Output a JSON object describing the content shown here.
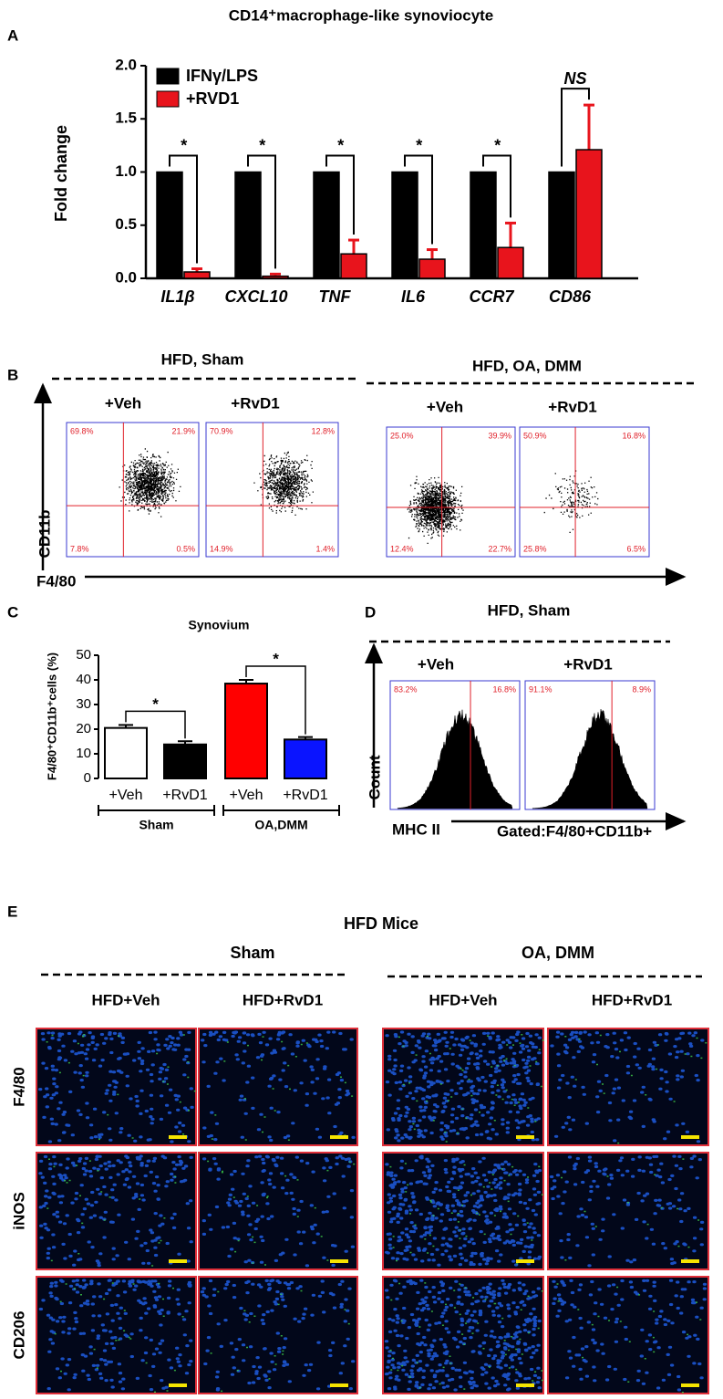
{
  "title": "CD14⁺macrophage-like synoviocyte",
  "panel_labels": [
    "A",
    "B",
    "C",
    "D",
    "E"
  ],
  "chart_data": [
    {
      "type": "bar",
      "ylabel": "Fold change",
      "categories": [
        "IL1β",
        "CXCL10",
        "TNF",
        "IL6",
        "CCR7",
        "CD86"
      ],
      "series": [
        {
          "name": "IFNγ/LPS",
          "color": "#000000",
          "values": [
            1,
            1,
            1,
            1,
            1,
            1
          ]
        },
        {
          "name": "+RVD1",
          "color": "#e8141c",
          "values": [
            0.06,
            0.02,
            0.23,
            0.18,
            0.29,
            1.21
          ],
          "errors": [
            0.03,
            0.02,
            0.13,
            0.09,
            0.23,
            0.42
          ]
        }
      ],
      "annotations": [
        "*",
        "*",
        "*",
        "*",
        "*",
        "NS"
      ],
      "ylim": [
        0,
        2
      ],
      "yticks": [
        {
          "value": 0,
          "label": "0.0"
        },
        {
          "value": 0.5,
          "label": "0.5"
        },
        {
          "value": 1,
          "label": "1.0"
        },
        {
          "value": 1.5,
          "label": "1.5"
        },
        {
          "value": 2,
          "label": "2.0"
        }
      ]
    },
    {
      "type": "bar",
      "title": "Synovium",
      "ylabel": "F4/80⁺CD11b⁺cells (%)",
      "categories": [
        "+Veh",
        "+RvD1",
        "+Veh",
        "+RvD1"
      ],
      "values": [
        20.5,
        13.8,
        38.5,
        15.8
      ],
      "errors": [
        1.2,
        1.3,
        1.5,
        1.0
      ],
      "colors": [
        "#ffffff",
        "#000000",
        "#ff0000",
        "#0a14ff"
      ],
      "group_labels": [
        "Sham",
        "OA,DMM"
      ],
      "annotations": [
        "*",
        "*"
      ],
      "ylim": [
        0,
        50
      ],
      "yticks": [
        0,
        10,
        20,
        30,
        40,
        50
      ]
    }
  ],
  "flow_b": {
    "y_label": "CD11b",
    "x_label": "F4/80",
    "groups": [
      {
        "label": "HFD, Sham",
        "plots": [
          {
            "label": "+Veh",
            "quadrants": [
              "69.8%",
              "21.9%",
              "7.8%",
              "0.5%"
            ]
          },
          {
            "label": "+RvD1",
            "quadrants": [
              "70.9%",
              "12.8%",
              "14.9%",
              "1.4%"
            ]
          }
        ]
      },
      {
        "label": "HFD, OA, DMM",
        "plots": [
          {
            "label": "+Veh",
            "quadrants": [
              "25.0%",
              "39.9%",
              "12.4%",
              "22.7%"
            ]
          },
          {
            "label": "+RvD1",
            "quadrants": [
              "50.9%",
              "16.8%",
              "25.8%",
              "6.5%"
            ]
          }
        ]
      }
    ]
  },
  "flow_d": {
    "group": "HFD, Sham",
    "y_label": "Count",
    "x_label": "MHC II",
    "gate": "Gated:F4/80+CD11b+",
    "plots": [
      {
        "label": "+Veh",
        "regions": [
          "83.2%",
          "16.8%"
        ]
      },
      {
        "label": "+RvD1",
        "regions": [
          "91.1%",
          "8.9%"
        ]
      }
    ]
  },
  "panel_e": {
    "title": "HFD Mice",
    "groups": [
      "Sham",
      "OA, DMM"
    ],
    "columns": [
      "HFD+Veh",
      "HFD+RvD1",
      "HFD+Veh",
      "HFD+RvD1"
    ],
    "rows": [
      "F4/80",
      "iNOS",
      "CD206"
    ]
  }
}
